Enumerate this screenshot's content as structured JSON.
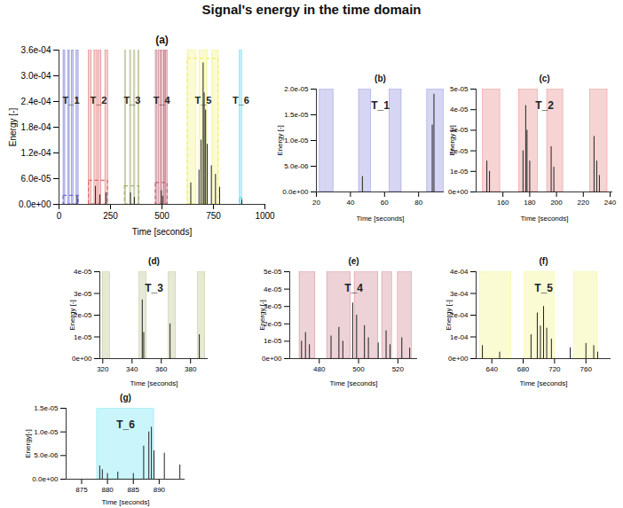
{
  "title": "Signal's energy in the time domain",
  "chart_data": [
    {
      "type": "bar",
      "title": "(a)",
      "x_label": "Time [seconds]",
      "y_label": "Energy [-]",
      "xlim": [
        0,
        1000
      ],
      "xticks": [
        0,
        250,
        500,
        750,
        1000
      ],
      "ylim": [
        0,
        0.00036
      ],
      "yticks": [
        {
          "value": 0,
          "label": "0.0e+00"
        },
        {
          "value": 6e-05,
          "label": "6.0e-05"
        },
        {
          "value": 0.00012,
          "label": "1.2e-04"
        },
        {
          "value": 0.00018,
          "label": "1.8e-04"
        },
        {
          "value": 0.00024,
          "label": "2.4e-04"
        },
        {
          "value": 0.0003,
          "label": "3.0e-04"
        },
        {
          "value": 0.00036,
          "label": "3.6e-04"
        }
      ],
      "color": "#222222",
      "x": [
        88,
        177,
        198,
        228,
        347,
        366,
        497,
        503,
        640,
        680,
        690,
        700,
        705,
        712,
        720,
        740,
        760,
        780,
        888
      ],
      "values": [
        1.9e-05,
        4.2e-05,
        2.2e-05,
        2.7e-05,
        2.7e-05,
        1.6e-05,
        3.2e-05,
        1.9e-05,
        5e-05,
        8e-05,
        0.00015,
        0.00033,
        0.00026,
        0.00022,
        0.00014,
        9e-05,
        7e-05,
        4e-05,
        1.1e-05
      ],
      "regions": [
        {
          "name": "T_1",
          "color": "#6b6bd6",
          "intervals": [
            [
              22,
              30
            ],
            [
              45,
              52
            ],
            [
              63,
              70
            ],
            [
              85,
              95
            ]
          ],
          "box_top": 2e-05
        },
        {
          "name": "T_2",
          "color": "#e06666",
          "intervals": [
            [
              145,
              158
            ],
            [
              172,
              186
            ],
            [
              193,
              205
            ],
            [
              225,
              238
            ]
          ],
          "box_top": 5.5e-05
        },
        {
          "name": "T_3",
          "color": "#a8b070",
          "intervals": [
            [
              320,
              325
            ],
            [
              345,
              350
            ],
            [
              365,
              370
            ],
            [
              385,
              390
            ]
          ],
          "box_top": 4.2e-05
        },
        {
          "name": "T_4",
          "color": "#c06070",
          "intervals": [
            [
              470,
              478
            ],
            [
              484,
              496
            ],
            [
              498,
              510
            ],
            [
              512,
              517
            ],
            [
              520,
              527
            ]
          ],
          "box_top": 5e-05
        },
        {
          "name": "T_5",
          "color": "#f0f060",
          "intervals": [
            [
              625,
              665
            ],
            [
              682,
              720
            ],
            [
              745,
              775
            ]
          ],
          "box_top": 0.00034
        },
        {
          "name": "T_6",
          "color": "#40e0f0",
          "intervals": [
            [
              878,
              889
            ]
          ],
          "box_top": 1.5e-05
        }
      ]
    },
    {
      "type": "bar",
      "title": "(b)",
      "annotation": "T_1",
      "x_label": "Time [seconds]",
      "y_label": "Energy [-]",
      "region_color": "#6b6bd6",
      "intervals": [
        [
          22,
          30
        ],
        [
          45,
          52
        ],
        [
          63,
          70
        ],
        [
          85,
          95
        ]
      ],
      "xlim": [
        20,
        95
      ],
      "xticks": [
        20,
        40,
        60,
        80
      ],
      "ylim": [
        0,
        2e-05
      ],
      "yticks": [
        {
          "value": 0,
          "label": "0.0e+00"
        },
        {
          "value": 5e-06,
          "label": "5.0e-06"
        },
        {
          "value": 1e-05,
          "label": "1.0e-05"
        },
        {
          "value": 1.5e-05,
          "label": "1.5e-05"
        },
        {
          "value": 2e-05,
          "label": "2.0e-05"
        }
      ],
      "color": "#222222",
      "x": [
        47,
        88,
        89
      ],
      "values": [
        3e-06,
        1.3e-05,
        1.9e-05
      ]
    },
    {
      "type": "bar",
      "title": "(c)",
      "annotation": "T_2",
      "x_label": "Time [seconds]",
      "y_label": "Energy [-]",
      "region_color": "#e06666",
      "intervals": [
        [
          145,
          158
        ],
        [
          172,
          186
        ],
        [
          193,
          205
        ],
        [
          225,
          238
        ]
      ],
      "xlim": [
        140,
        242
      ],
      "xticks": [
        160,
        180,
        200,
        220,
        240
      ],
      "ylim": [
        0,
        5e-05
      ],
      "yticks": [
        {
          "value": 0,
          "label": "0e+00"
        },
        {
          "value": 1e-05,
          "label": "1e-05"
        },
        {
          "value": 2e-05,
          "label": "2e-05"
        },
        {
          "value": 3e-05,
          "label": "3e-05"
        },
        {
          "value": 4e-05,
          "label": "4e-05"
        },
        {
          "value": 5e-05,
          "label": "5e-05"
        }
      ],
      "color": "#222222",
      "x": [
        148,
        150,
        175,
        177,
        178,
        180,
        196,
        198,
        228,
        230,
        232
      ],
      "values": [
        1.5e-05,
        1e-05,
        2e-05,
        4.2e-05,
        3e-05,
        1.5e-05,
        2.2e-05,
        1.2e-05,
        2.7e-05,
        1.5e-05,
        8e-06
      ]
    },
    {
      "type": "bar",
      "title": "(d)",
      "annotation": "T_3",
      "x_label": "Time [seconds]",
      "y_label": "Energy [-]",
      "region_color": "#a8b070",
      "intervals": [
        [
          320,
          325
        ],
        [
          345,
          350
        ],
        [
          365,
          370
        ],
        [
          385,
          390
        ]
      ],
      "xlim": [
        318,
        392
      ],
      "xticks": [
        320,
        340,
        360,
        380
      ],
      "ylim": [
        0,
        4e-05
      ],
      "yticks": [
        {
          "value": 0,
          "label": "0e+00"
        },
        {
          "value": 1e-05,
          "label": "1e-05"
        },
        {
          "value": 2e-05,
          "label": "2e-05"
        },
        {
          "value": 3e-05,
          "label": "3e-05"
        },
        {
          "value": 4e-05,
          "label": "4e-05"
        }
      ],
      "color": "#222222",
      "x": [
        347,
        348,
        366,
        386
      ],
      "values": [
        2.7e-05,
        1.2e-05,
        1.6e-05,
        1.1e-05
      ]
    },
    {
      "type": "bar",
      "title": "(e)",
      "annotation": "T_4",
      "x_label": "Time [seconds]",
      "y_label": "Energy [-]",
      "region_color": "#c06070",
      "intervals": [
        [
          470,
          478
        ],
        [
          484,
          496
        ],
        [
          498,
          510
        ],
        [
          512,
          517
        ],
        [
          520,
          527
        ]
      ],
      "xlim": [
        465,
        530
      ],
      "xticks": [
        480,
        500,
        520
      ],
      "ylim": [
        0,
        5e-05
      ],
      "yticks": [
        {
          "value": 0,
          "label": "0e+00"
        },
        {
          "value": 1e-05,
          "label": "1e-05"
        },
        {
          "value": 2e-05,
          "label": "2e-05"
        },
        {
          "value": 3e-05,
          "label": "3e-05"
        },
        {
          "value": 4e-05,
          "label": "4e-05"
        },
        {
          "value": 5e-05,
          "label": "5e-05"
        }
      ],
      "color": "#222222",
      "x": [
        471,
        473,
        475,
        486,
        490,
        492,
        497,
        499,
        503,
        505,
        510,
        514,
        516,
        522,
        526
      ],
      "values": [
        1e-05,
        1.5e-05,
        8e-06,
        1.3e-05,
        1.8e-05,
        1e-05,
        3.2e-05,
        2.5e-05,
        1.9e-05,
        1.2e-05,
        9e-06,
        1.6e-05,
        8e-06,
        1.2e-05,
        6e-06
      ]
    },
    {
      "type": "bar",
      "title": "(f)",
      "annotation": "T_5",
      "x_label": "Time [seconds]",
      "y_label": "Energy [-]",
      "region_color": "#f0f060",
      "intervals": [
        [
          625,
          665
        ],
        [
          682,
          720
        ],
        [
          745,
          775
        ]
      ],
      "xlim": [
        620,
        792
      ],
      "xticks": [
        640,
        680,
        720,
        760
      ],
      "ylim": [
        0,
        0.0004
      ],
      "yticks": [
        {
          "value": 0,
          "label": "0e+00"
        },
        {
          "value": 0.0001,
          "label": "1e-04"
        },
        {
          "value": 0.0002,
          "label": "2e-04"
        },
        {
          "value": 0.0003,
          "label": "3e-04"
        },
        {
          "value": 0.0004,
          "label": "4e-04"
        }
      ],
      "color": "#222222",
      "x": [
        628,
        650,
        690,
        698,
        702,
        706,
        710,
        716,
        740,
        760,
        770,
        775
      ],
      "values": [
        6e-05,
        3e-05,
        0.00011,
        0.00021,
        0.00015,
        0.00024,
        0.00014,
        9e-05,
        5e-05,
        7e-05,
        6e-05,
        3e-05
      ]
    },
    {
      "type": "bar",
      "title": "(g)",
      "annotation": "T_6",
      "x_label": "Time [seconds]",
      "y_label": "Energy[-]",
      "region_color": "#40e0f0",
      "intervals": [
        [
          878,
          889
        ]
      ],
      "xlim": [
        872,
        895
      ],
      "xticks": [
        875,
        880,
        885,
        890
      ],
      "ylim": [
        0,
        1.5e-05
      ],
      "yticks": [
        {
          "value": 0,
          "label": "0.0e+00"
        },
        {
          "value": 5e-06,
          "label": "5.0e-06"
        },
        {
          "value": 1e-05,
          "label": "1.0e-05"
        },
        {
          "value": 1.5e-05,
          "label": "1.5e-05"
        }
      ],
      "color": "#222222",
      "x": [
        878.5,
        879,
        880,
        882,
        885,
        887,
        888,
        888.5,
        889,
        891,
        894
      ],
      "values": [
        2.8e-06,
        2e-06,
        1.2e-06,
        1.5e-06,
        1.2e-06,
        7e-06,
        1e-05,
        1.1e-05,
        6e-06,
        5.5e-06,
        3e-06
      ]
    }
  ]
}
